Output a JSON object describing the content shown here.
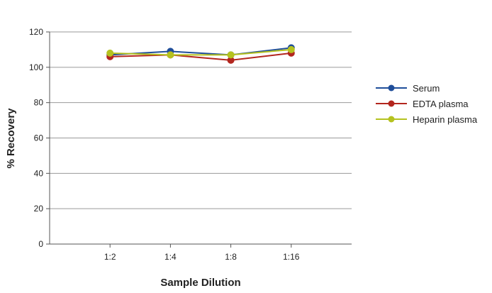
{
  "chart_data": {
    "type": "line",
    "title": "",
    "xlabel": "Sample Dilution",
    "ylabel": "% Recovery",
    "categories": [
      "1:2",
      "1:4",
      "1:8",
      "1:16"
    ],
    "ylim": [
      0,
      120
    ],
    "yticks": [
      0,
      20,
      40,
      60,
      80,
      100,
      120
    ],
    "grid": true,
    "legend_position": "right",
    "series": [
      {
        "name": "Serum",
        "color": "#1f4e9a",
        "values": [
          107,
          109,
          107,
          111
        ]
      },
      {
        "name": "EDTA plasma",
        "color": "#b3261e",
        "values": [
          106,
          107,
          104,
          108
        ]
      },
      {
        "name": "Heparin plasma",
        "color": "#b5c21f",
        "values": [
          108,
          107,
          107,
          110
        ]
      }
    ]
  }
}
